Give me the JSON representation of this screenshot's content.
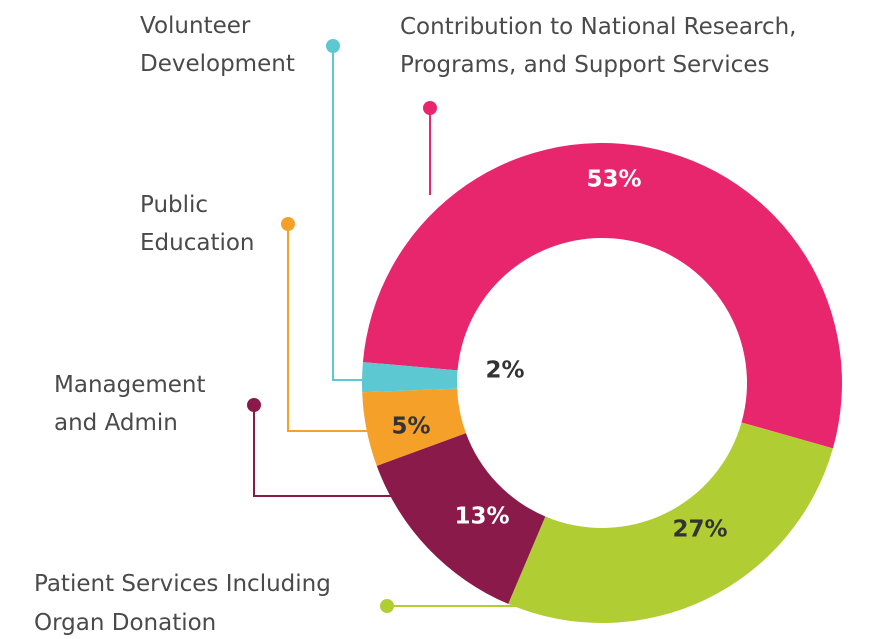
{
  "chart_data": {
    "type": "donut",
    "categories": [
      [
        "Contribution to National Research,",
        "Programs, and Support Services"
      ],
      [
        "Patient Services Including",
        "Organ Donation"
      ],
      [
        "Management",
        "and Admin"
      ],
      [
        "Public",
        "Education"
      ],
      [
        "Volunteer",
        "Development"
      ]
    ],
    "values": [
      53,
      27,
      13,
      5,
      2
    ],
    "value_labels": [
      "53%",
      "27%",
      "13%",
      "5%",
      "2%"
    ],
    "colors": [
      "#e8266e",
      "#b1cd34",
      "#8a1a4a",
      "#f5a028",
      "#5bc8d2"
    ]
  }
}
